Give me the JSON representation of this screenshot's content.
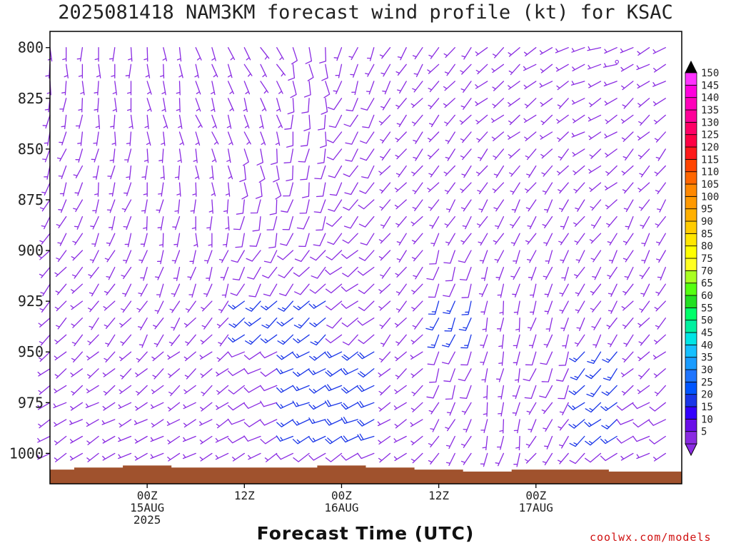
{
  "title": "2025081418 NAM3KM forecast wind profile (kt) for KSAC",
  "credit": "coolwx.com/models",
  "colors": {
    "terrain": "#a0522d",
    "barb_primary": "#8a2be2",
    "barb_secondary": "#1a36e8",
    "station_marker": "#8a2be2"
  },
  "chart_data": {
    "type": "wind-barb-time-height",
    "title": "2025081418 NAM3KM forecast wind profile (kt) for KSAC",
    "xlabel": "Forecast Time (UTC)",
    "ylabel": "",
    "y_axis": {
      "units": "hPa",
      "inverted": true,
      "range": [
        792,
        1015
      ],
      "ticks": [
        800,
        825,
        850,
        875,
        900,
        925,
        950,
        975,
        1000
      ]
    },
    "x_axis": {
      "units": "hours from 2025-08-14 18Z",
      "range": [
        -6,
        72
      ],
      "ticks": [
        {
          "hour": 6,
          "lines": [
            "00Z",
            "15AUG",
            "2025"
          ]
        },
        {
          "hour": 18,
          "lines": [
            "12Z"
          ]
        },
        {
          "hour": 30,
          "lines": [
            "00Z",
            "16AUG"
          ]
        },
        {
          "hour": 42,
          "lines": [
            "12Z"
          ]
        },
        {
          "hour": 54,
          "lines": [
            "00Z",
            "17AUG"
          ]
        }
      ]
    },
    "colorbar": {
      "units": "kt",
      "levels": [
        5,
        10,
        15,
        20,
        25,
        30,
        35,
        40,
        45,
        50,
        55,
        60,
        65,
        70,
        75,
        80,
        85,
        90,
        95,
        100,
        105,
        110,
        115,
        120,
        125,
        130,
        135,
        140,
        145,
        150
      ],
      "colors": [
        "#8a2be2",
        "#6a0fe8",
        "#3300ff",
        "#1a36e8",
        "#0055ff",
        "#1f75fe",
        "#1a9cff",
        "#16c0ff",
        "#00e5e5",
        "#00f0a0",
        "#00ff6a",
        "#22e022",
        "#55ff11",
        "#aaff22",
        "#ffff22",
        "#ffff00",
        "#ffe600",
        "#ffcc00",
        "#ffb000",
        "#ff9900",
        "#ff8800",
        "#ff6600",
        "#ff4400",
        "#ff1a1a",
        "#ff0044",
        "#ff0066",
        "#ff0099",
        "#ff00bb",
        "#ff00dd",
        "#ff33ff"
      ]
    },
    "terrain_surface_pressure": {
      "hours": [
        -6,
        0,
        6,
        12,
        18,
        24,
        30,
        36,
        42,
        48,
        54,
        60,
        66,
        72
      ],
      "hpa": [
        1008,
        1007,
        1006,
        1007,
        1007,
        1007,
        1006,
        1007,
        1008,
        1009,
        1008,
        1008,
        1009,
        1009
      ]
    },
    "wind_levels_hpa": [
      800,
      825,
      850,
      875,
      900,
      925,
      950,
      975,
      1000
    ],
    "wind_hours": [
      -6,
      0,
      6,
      12,
      18,
      24,
      30,
      36,
      42,
      48,
      54,
      60,
      66,
      72
    ],
    "wind_direction_deg": [
      [
        180,
        180,
        170,
        160,
        150,
        170,
        200,
        210,
        220,
        230,
        240,
        250,
        240,
        230
      ],
      [
        190,
        180,
        170,
        160,
        160,
        180,
        210,
        220,
        220,
        230,
        230,
        240,
        230,
        220
      ],
      [
        200,
        190,
        180,
        170,
        170,
        190,
        210,
        220,
        220,
        220,
        220,
        230,
        220,
        210
      ],
      [
        210,
        200,
        190,
        180,
        190,
        200,
        220,
        220,
        210,
        210,
        210,
        220,
        210,
        210
      ],
      [
        220,
        210,
        200,
        200,
        210,
        220,
        230,
        220,
        200,
        200,
        200,
        210,
        210,
        210
      ],
      [
        225,
        220,
        210,
        220,
        230,
        230,
        230,
        220,
        200,
        190,
        200,
        210,
        220,
        220
      ],
      [
        230,
        230,
        230,
        230,
        240,
        240,
        240,
        230,
        200,
        190,
        200,
        220,
        230,
        230
      ],
      [
        240,
        240,
        240,
        240,
        245,
        245,
        245,
        235,
        210,
        190,
        210,
        230,
        240,
        240
      ],
      [
        240,
        240,
        240,
        240,
        240,
        240,
        240,
        230,
        210,
        200,
        220,
        230,
        240,
        240
      ]
    ],
    "wind_speed_kt": [
      [
        5,
        5,
        5,
        5,
        5,
        10,
        5,
        5,
        5,
        5,
        5,
        5,
        5,
        5
      ],
      [
        5,
        5,
        5,
        5,
        5,
        10,
        10,
        5,
        5,
        5,
        5,
        5,
        5,
        5
      ],
      [
        5,
        5,
        5,
        5,
        10,
        10,
        10,
        5,
        5,
        5,
        5,
        5,
        5,
        5
      ],
      [
        5,
        5,
        5,
        5,
        10,
        10,
        10,
        5,
        5,
        5,
        5,
        5,
        5,
        5
      ],
      [
        5,
        5,
        5,
        5,
        10,
        10,
        10,
        5,
        10,
        5,
        5,
        5,
        5,
        5
      ],
      [
        5,
        5,
        5,
        5,
        15,
        15,
        10,
        5,
        15,
        5,
        5,
        5,
        5,
        5
      ],
      [
        5,
        5,
        5,
        5,
        10,
        15,
        20,
        5,
        10,
        5,
        10,
        15,
        5,
        5
      ],
      [
        5,
        5,
        5,
        5,
        10,
        15,
        20,
        5,
        5,
        5,
        5,
        15,
        10,
        5
      ],
      [
        5,
        5,
        5,
        5,
        5,
        10,
        10,
        5,
        5,
        5,
        5,
        10,
        5,
        5
      ]
    ]
  }
}
